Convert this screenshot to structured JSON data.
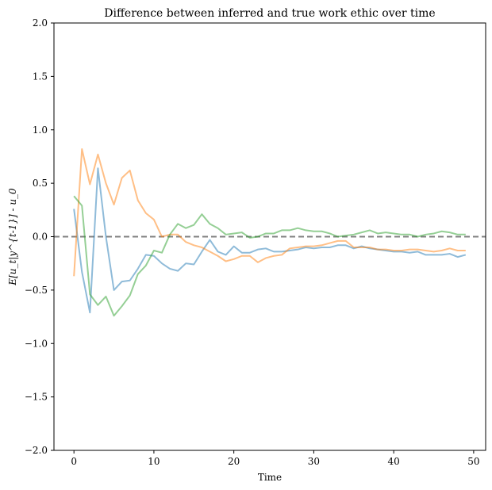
{
  "chart_data": {
    "type": "line",
    "title": "Difference between inferred and true work ethic over time",
    "xlabel": "Time",
    "ylabel": "E[u_t|y^{t-1}] - u_0",
    "xlim": [
      -2.5,
      51.5
    ],
    "ylim": [
      -2.0,
      2.0
    ],
    "xticks": [
      0,
      10,
      20,
      30,
      40,
      50
    ],
    "yticks": [
      -2.0,
      -1.5,
      -1.0,
      -0.5,
      0.0,
      0.5,
      1.0,
      1.5,
      2.0
    ],
    "ytick_labels": [
      "−2.0",
      "−1.5",
      "−1.0",
      "−0.5",
      "0.0",
      "0.5",
      "1.0",
      "1.5",
      "2.0"
    ],
    "grid": false,
    "reference_line": {
      "y": 0.0,
      "style": "dashed",
      "color": "#808080"
    },
    "x": [
      0,
      1,
      2,
      3,
      4,
      5,
      6,
      7,
      8,
      9,
      10,
      11,
      12,
      13,
      14,
      15,
      16,
      17,
      18,
      19,
      20,
      21,
      22,
      23,
      24,
      25,
      26,
      27,
      28,
      29,
      30,
      31,
      32,
      33,
      34,
      35,
      36,
      37,
      38,
      39,
      40,
      41,
      42,
      43,
      44,
      45,
      46,
      47,
      48,
      49
    ],
    "series": [
      {
        "color": "#1f77b4",
        "values": [
          0.26,
          -0.33,
          -0.71,
          0.64,
          0.0,
          -0.5,
          -0.42,
          -0.41,
          -0.3,
          -0.17,
          -0.18,
          -0.25,
          -0.3,
          -0.32,
          -0.25,
          -0.26,
          -0.14,
          -0.03,
          -0.14,
          -0.17,
          -0.09,
          -0.15,
          -0.15,
          -0.12,
          -0.11,
          -0.14,
          -0.14,
          -0.13,
          -0.12,
          -0.1,
          -0.11,
          -0.1,
          -0.1,
          -0.08,
          -0.08,
          -0.11,
          -0.09,
          -0.11,
          -0.12,
          -0.13,
          -0.14,
          -0.14,
          -0.15,
          -0.14,
          -0.17,
          -0.17,
          -0.17,
          -0.16,
          -0.19,
          -0.17
        ]
      },
      {
        "color": "#ff7f0e",
        "values": [
          -0.37,
          0.82,
          0.49,
          0.77,
          0.5,
          0.3,
          0.55,
          0.62,
          0.34,
          0.22,
          0.16,
          0.0,
          0.02,
          0.02,
          -0.05,
          -0.08,
          -0.1,
          -0.14,
          -0.18,
          -0.23,
          -0.21,
          -0.18,
          -0.18,
          -0.24,
          -0.2,
          -0.18,
          -0.17,
          -0.11,
          -0.1,
          -0.09,
          -0.09,
          -0.08,
          -0.06,
          -0.04,
          -0.04,
          -0.1,
          -0.1,
          -0.1,
          -0.12,
          -0.12,
          -0.13,
          -0.13,
          -0.12,
          -0.12,
          -0.13,
          -0.14,
          -0.13,
          -0.11,
          -0.13,
          -0.13
        ]
      },
      {
        "color": "#2ca02c",
        "values": [
          0.38,
          0.29,
          -0.54,
          -0.64,
          -0.56,
          -0.74,
          -0.65,
          -0.55,
          -0.35,
          -0.27,
          -0.13,
          -0.15,
          0.02,
          0.12,
          0.08,
          0.11,
          0.21,
          0.12,
          0.08,
          0.02,
          0.03,
          0.04,
          -0.01,
          0.0,
          0.03,
          0.03,
          0.06,
          0.06,
          0.08,
          0.06,
          0.05,
          0.05,
          0.03,
          0.0,
          0.01,
          0.02,
          0.04,
          0.06,
          0.03,
          0.04,
          0.03,
          0.02,
          0.02,
          0.0,
          0.02,
          0.03,
          0.05,
          0.04,
          0.02,
          0.02
        ]
      }
    ]
  }
}
